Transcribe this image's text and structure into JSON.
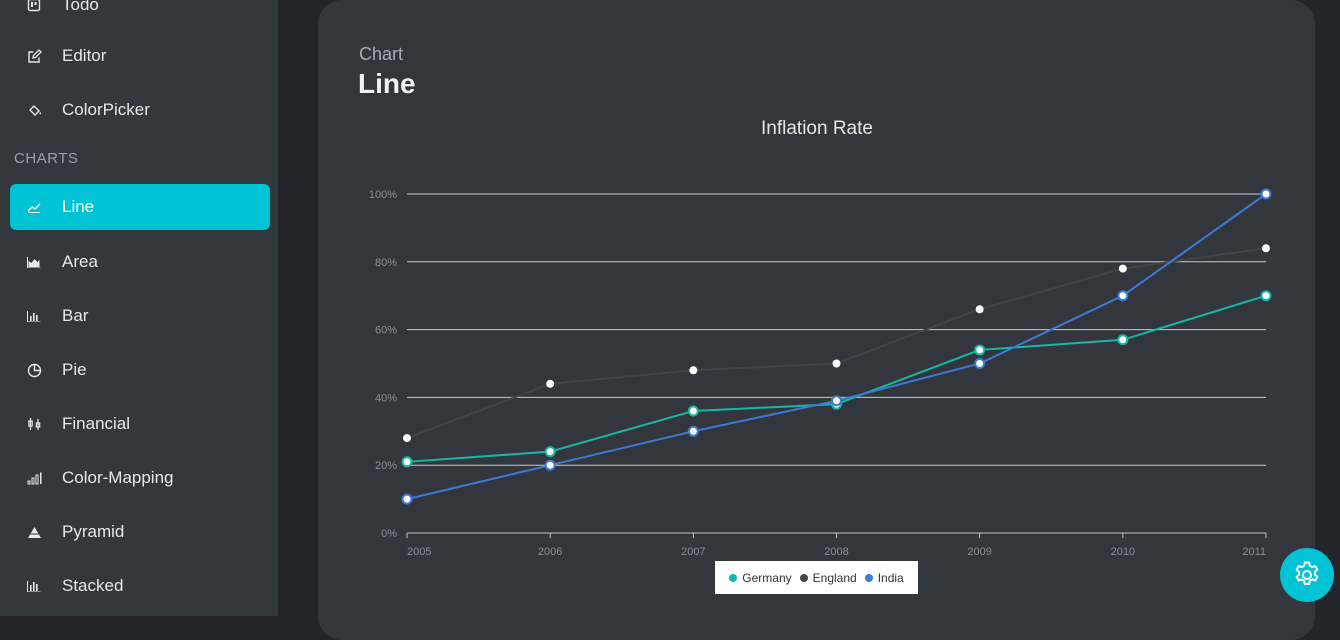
{
  "sidebar": {
    "items_top": [
      {
        "label": "Todo",
        "icon": "todo-icon"
      },
      {
        "label": "Editor",
        "icon": "edit-icon"
      },
      {
        "label": "ColorPicker",
        "icon": "paint-bucket-icon"
      }
    ],
    "section_label": "CHARTS",
    "items": [
      {
        "label": "Line",
        "icon": "line-chart-icon",
        "active": true
      },
      {
        "label": "Area",
        "icon": "area-chart-icon"
      },
      {
        "label": "Bar",
        "icon": "bar-chart-icon"
      },
      {
        "label": "Pie",
        "icon": "pie-chart-icon"
      },
      {
        "label": "Financial",
        "icon": "candlestick-icon"
      },
      {
        "label": "Color-Mapping",
        "icon": "signal-bars-icon"
      },
      {
        "label": "Pyramid",
        "icon": "pyramid-icon"
      },
      {
        "label": "Stacked",
        "icon": "stacked-bar-icon"
      }
    ]
  },
  "page": {
    "subtitle": "Chart",
    "title": "Line"
  },
  "colors": {
    "accent": "#00c3d6",
    "germany": "#14b8a6",
    "england": "#444444",
    "india": "#3b7bd4"
  },
  "chart_data": {
    "type": "line",
    "title": "Inflation Rate",
    "x": [
      "2005",
      "2006",
      "2007",
      "2008",
      "2009",
      "2010",
      "2011"
    ],
    "yticks": [
      "0%",
      "20%",
      "40%",
      "60%",
      "80%",
      "100%"
    ],
    "ylim": [
      0,
      100
    ],
    "grid": true,
    "legend_placement": "bottom-center",
    "series": [
      {
        "name": "Germany",
        "values": [
          21,
          24,
          36,
          38,
          54,
          57,
          70
        ]
      },
      {
        "name": "England",
        "values": [
          28,
          44,
          48,
          50,
          66,
          78,
          84
        ]
      },
      {
        "name": "India",
        "values": [
          10,
          20,
          30,
          39,
          50,
          70,
          100
        ]
      }
    ]
  }
}
